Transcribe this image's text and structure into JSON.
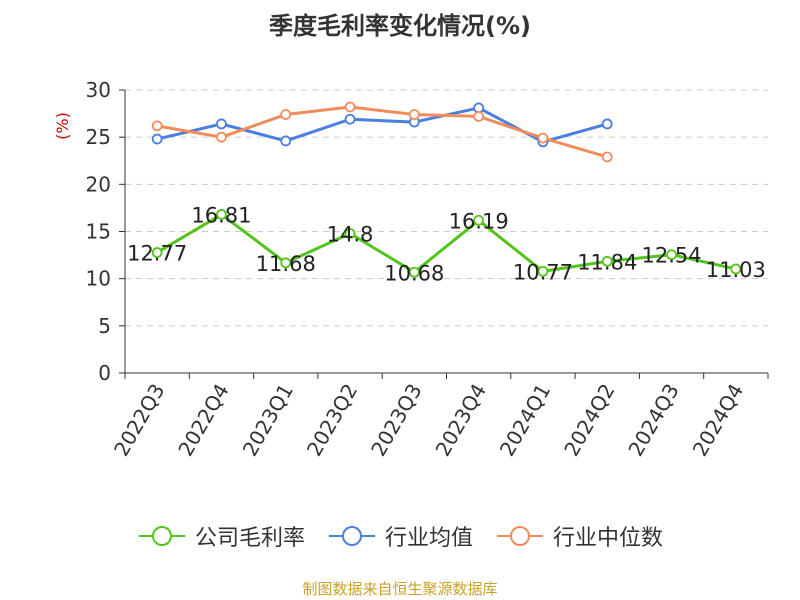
{
  "chart_data": {
    "type": "line",
    "title": "季度毛利率变化情况(%)",
    "ylabel": "(%)",
    "ylim": [
      0,
      30
    ],
    "yticks": [
      0,
      5,
      10,
      15,
      20,
      25,
      30
    ],
    "grid": true,
    "legend_position": "bottom",
    "categories": [
      "2022Q3",
      "2022Q4",
      "2023Q1",
      "2023Q2",
      "2023Q3",
      "2023Q4",
      "2024Q1",
      "2024Q2",
      "2024Q3",
      "2024Q4"
    ],
    "series": [
      {
        "name": "公司毛利率",
        "color": "#52c41a",
        "show_labels": true,
        "values": [
          12.77,
          16.81,
          11.68,
          14.8,
          10.68,
          16.19,
          10.77,
          11.84,
          12.54,
          11.03
        ]
      },
      {
        "name": "行业均值",
        "color": "#4a7fe0",
        "show_labels": false,
        "values": [
          24.8,
          26.4,
          24.6,
          26.9,
          26.6,
          28.1,
          24.5,
          26.4,
          null,
          null
        ]
      },
      {
        "name": "行业中位数",
        "color": "#f28c5a",
        "show_labels": false,
        "values": [
          26.2,
          25.0,
          27.4,
          28.2,
          27.4,
          27.2,
          24.9,
          22.9,
          null,
          null
        ]
      }
    ]
  },
  "source_text": "制图数据来自恒生聚源数据库"
}
